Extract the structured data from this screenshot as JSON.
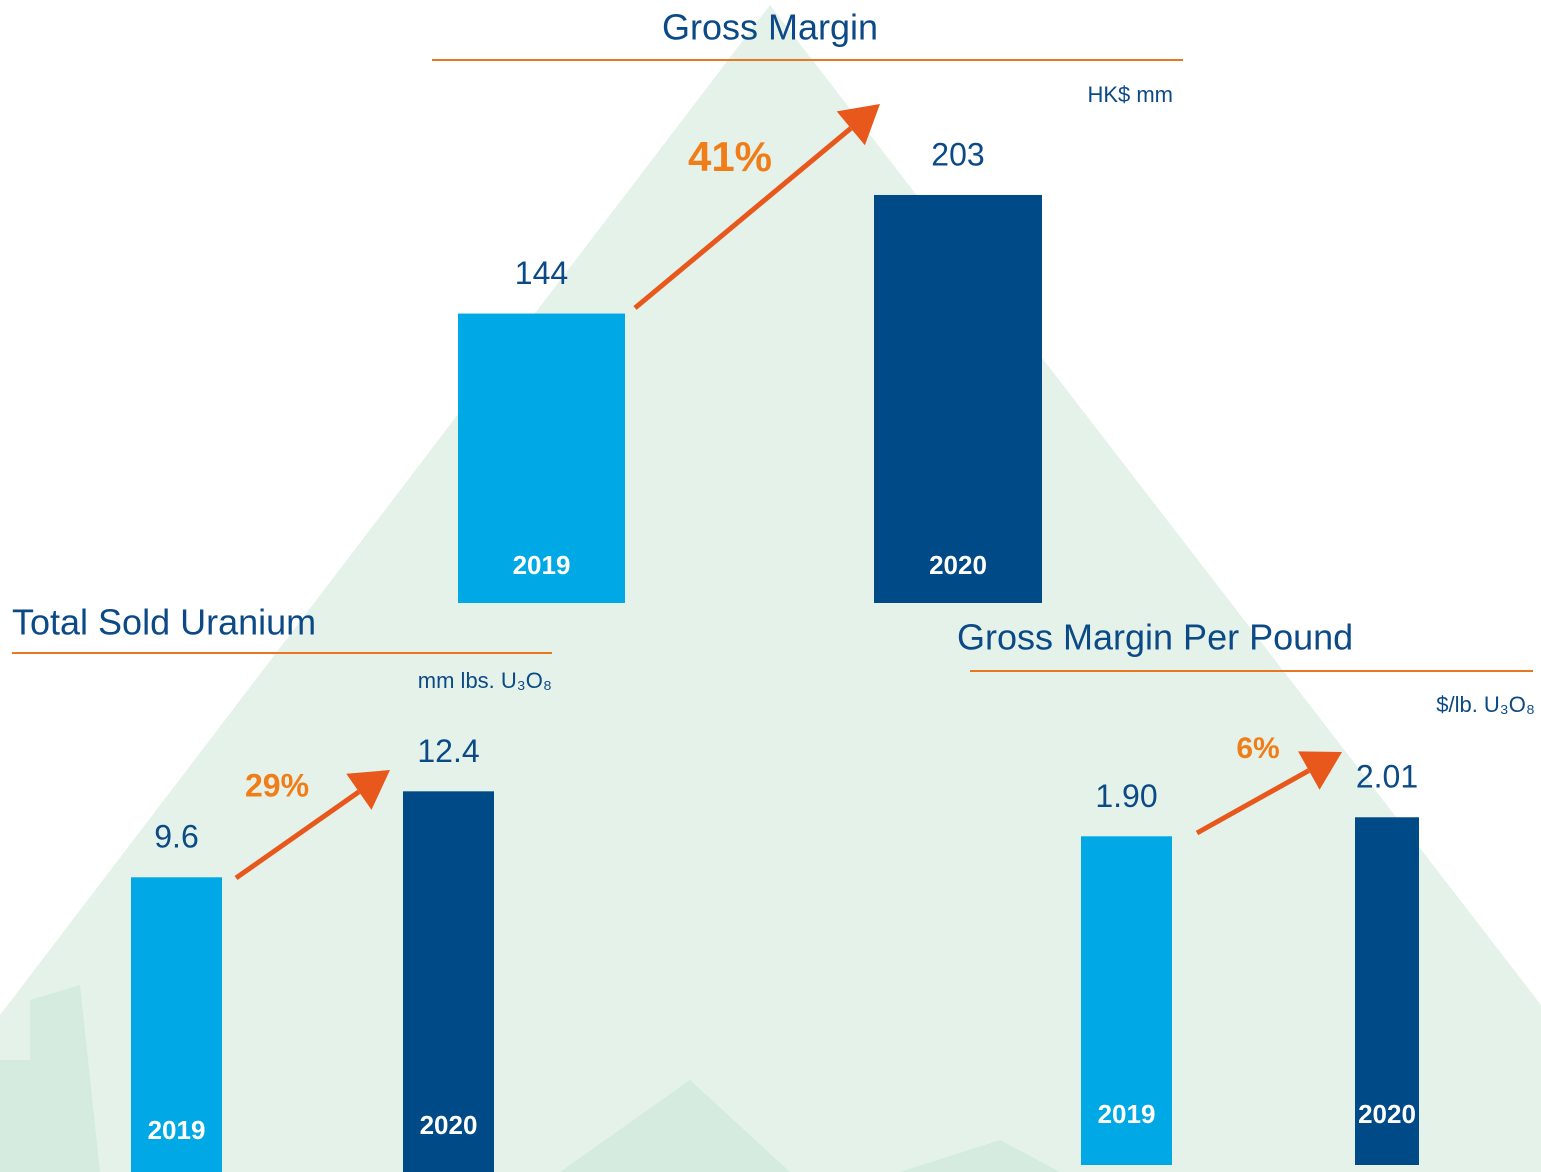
{
  "chart_data": [
    {
      "type": "bar",
      "title": "Gross Margin",
      "unit_label": "HK$ mm",
      "annotation": "41%",
      "categories": [
        "2019",
        "2020"
      ],
      "values": [
        144,
        203
      ],
      "colors": [
        "#00a9e6",
        "#004a87"
      ]
    },
    {
      "type": "bar",
      "title": "Total Sold Uranium",
      "unit_label": "mm lbs. U₃O₈",
      "annotation": "29%",
      "categories": [
        "2019",
        "2020"
      ],
      "values": [
        9.6,
        12.4
      ],
      "colors": [
        "#00a9e6",
        "#004a87"
      ]
    },
    {
      "type": "bar",
      "title": "Gross Margin Per Pound",
      "unit_label": "$/lb. U₃O₈",
      "annotation": "6%",
      "categories": [
        "2019",
        "2020"
      ],
      "values": [
        1.9,
        2.01
      ],
      "value_labels": [
        "1.90",
        "2.01"
      ],
      "colors": [
        "#00a9e6",
        "#004a87"
      ]
    }
  ]
}
